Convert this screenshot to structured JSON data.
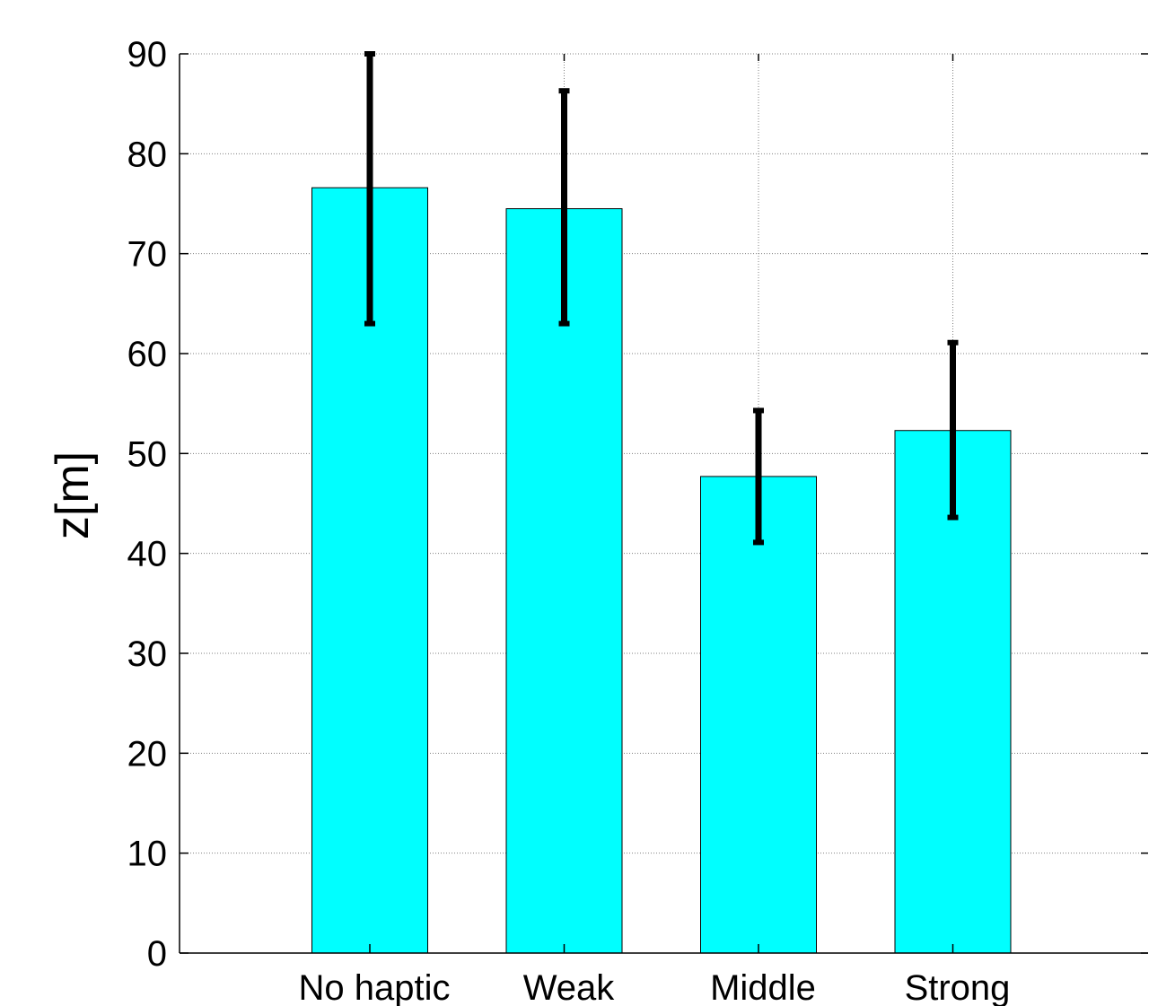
{
  "chart_data": {
    "type": "bar",
    "title": "",
    "xlabel": "",
    "ylabel": "z[m]",
    "ylim": [
      0,
      90
    ],
    "yticks": [
      0,
      10,
      20,
      30,
      40,
      50,
      60,
      70,
      80,
      90
    ],
    "grid": true,
    "categories": [
      "No haptic",
      "Weak",
      "Middle",
      "Strong"
    ],
    "values": [
      76.6,
      74.5,
      47.7,
      52.3
    ],
    "error_bars": {
      "lower": [
        63.0,
        63.0,
        41.1,
        43.6
      ],
      "upper": [
        90.0,
        86.3,
        54.3,
        61.1
      ]
    },
    "colors": {
      "bar": "#00FFFF",
      "bar_edge": "#000000",
      "error_bar": "#000000",
      "grid": "#808080"
    }
  }
}
